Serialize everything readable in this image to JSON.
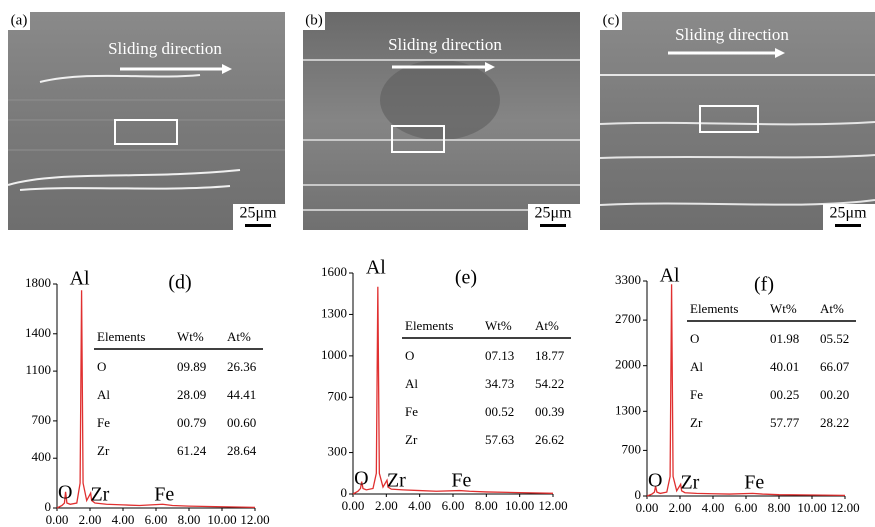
{
  "images": [
    {
      "label": "(a)",
      "caption": "Sliding direction",
      "scale": "25μm"
    },
    {
      "label": "(b)",
      "caption": "Sliding direction",
      "scale": "25μm"
    },
    {
      "label": "(c)",
      "caption": "Sliding direction",
      "scale": "25μm"
    }
  ],
  "chart_data": [
    {
      "type": "line",
      "label": "(d)",
      "color": "#e03030",
      "x": [
        0,
        0.3,
        0.45,
        0.52,
        0.6,
        0.8,
        1.2,
        1.4,
        1.49,
        1.58,
        1.8,
        2.04,
        2.1,
        2.3,
        3,
        4,
        5,
        6.4,
        7,
        8,
        10,
        12
      ],
      "values": [
        0,
        20,
        40,
        130,
        40,
        30,
        40,
        200,
        1750,
        200,
        60,
        120,
        60,
        40,
        30,
        25,
        20,
        30,
        20,
        15,
        10,
        5
      ],
      "xlim": [
        0,
        12
      ],
      "xticks": [
        {
          "value": 0,
          "label": "0.00"
        },
        {
          "value": 2,
          "label": "2.00"
        },
        {
          "value": 4,
          "label": "4.00"
        },
        {
          "value": 6,
          "label": "6.00"
        },
        {
          "value": 8,
          "label": "8.00"
        },
        {
          "value": 10,
          "label": "10.00"
        },
        {
          "value": 12,
          "label": "12.00"
        }
      ],
      "ylim": [
        0,
        1800
      ],
      "yticks": [
        0,
        400,
        700,
        1100,
        1400,
        1800
      ],
      "peak_labels": [
        "Al",
        "O",
        "Zr",
        "Fe"
      ],
      "table": {
        "header": [
          "Elements",
          "Wt%",
          "At%"
        ],
        "rows": [
          [
            "O",
            "09.89",
            "26.36"
          ],
          [
            "Al",
            "28.09",
            "44.41"
          ],
          [
            "Fe",
            "00.79",
            "00.60"
          ],
          [
            "Zr",
            "61.24",
            "28.64"
          ]
        ]
      }
    },
    {
      "type": "line",
      "label": "(e)",
      "color": "#e03030",
      "x": [
        0,
        0.3,
        0.45,
        0.52,
        0.6,
        0.8,
        1.2,
        1.4,
        1.49,
        1.58,
        1.8,
        2.04,
        2.1,
        2.3,
        3,
        4,
        5,
        6.4,
        7,
        8,
        10,
        12
      ],
      "values": [
        0,
        20,
        40,
        90,
        40,
        30,
        40,
        150,
        1500,
        150,
        50,
        100,
        50,
        35,
        30,
        25,
        20,
        25,
        20,
        15,
        10,
        5
      ],
      "xlim": [
        0,
        12
      ],
      "xticks": [
        {
          "value": 0,
          "label": "0.00"
        },
        {
          "value": 2,
          "label": "2.00"
        },
        {
          "value": 4,
          "label": "4.00"
        },
        {
          "value": 6,
          "label": "6.00"
        },
        {
          "value": 8,
          "label": "8.00"
        },
        {
          "value": 10,
          "label": "10.00"
        },
        {
          "value": 12,
          "label": "12.00"
        }
      ],
      "ylim": [
        0,
        1600
      ],
      "yticks": [
        0,
        300,
        700,
        1000,
        1300,
        1600
      ],
      "peak_labels": [
        "Al",
        "O",
        "Zr",
        "Fe"
      ],
      "table": {
        "header": [
          "Elements",
          "Wt%",
          "At%"
        ],
        "rows": [
          [
            "O",
            "07.13",
            "18.77"
          ],
          [
            "Al",
            "34.73",
            "54.22"
          ],
          [
            "Fe",
            "00.52",
            "00.39"
          ],
          [
            "Zr",
            "57.63",
            "26.62"
          ]
        ]
      }
    },
    {
      "type": "line",
      "label": "(f)",
      "color": "#e03030",
      "x": [
        0,
        0.3,
        0.45,
        0.52,
        0.6,
        0.8,
        1.2,
        1.4,
        1.49,
        1.58,
        1.8,
        2.04,
        2.1,
        2.3,
        3,
        4,
        5,
        6.4,
        7,
        8,
        10,
        12
      ],
      "values": [
        0,
        30,
        60,
        150,
        60,
        40,
        60,
        300,
        3250,
        300,
        80,
        180,
        80,
        50,
        40,
        35,
        30,
        40,
        30,
        20,
        15,
        10
      ],
      "xlim": [
        0,
        12
      ],
      "xticks": [
        {
          "value": 0,
          "label": "0.00"
        },
        {
          "value": 2,
          "label": "2.00"
        },
        {
          "value": 4,
          "label": "4.00"
        },
        {
          "value": 6,
          "label": "6.00"
        },
        {
          "value": 8,
          "label": "8.00"
        },
        {
          "value": 10,
          "label": "10.00"
        },
        {
          "value": 12,
          "label": "12.00"
        }
      ],
      "ylim": [
        0,
        3300
      ],
      "yticks": [
        0,
        700,
        1300,
        2000,
        2700,
        3300
      ],
      "peak_labels": [
        "Al",
        "O",
        "Zr",
        "Fe"
      ],
      "table": {
        "header": [
          "Elements",
          "Wt%",
          "At%"
        ],
        "rows": [
          [
            "O",
            "01.98",
            "05.52"
          ],
          [
            "Al",
            "40.01",
            "66.07"
          ],
          [
            "Fe",
            "00.25",
            "00.20"
          ],
          [
            "Zr",
            "57.77",
            "28.22"
          ]
        ]
      }
    }
  ]
}
